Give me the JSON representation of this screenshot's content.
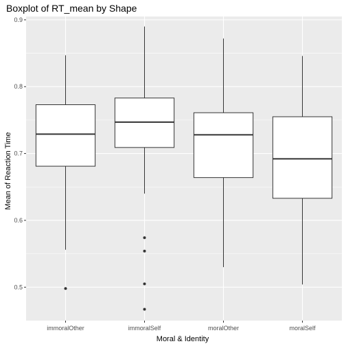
{
  "chart_data": {
    "type": "boxplot",
    "title": "Boxplot of RT_mean by Shape",
    "xlabel": "Moral & Identity",
    "ylabel": "Mean of Reaction Time",
    "ylim": [
      0.45,
      0.905
    ],
    "yticks": [
      "0.5",
      "0.6",
      "0.7",
      "0.8",
      "0.9"
    ],
    "grid": true,
    "panel_background": "#ebebeb",
    "grid_color": "#ffffff",
    "box_fill": "#ffffff",
    "line_color": "#333333",
    "categories": [
      "immoralOther",
      "immoralSelf",
      "moralOther",
      "moralSelf"
    ],
    "boxes": [
      {
        "name": "immoralOther",
        "whisker_low": 0.556,
        "q1": 0.681,
        "median": 0.729,
        "q3": 0.773,
        "whisker_high": 0.847,
        "outliers": [
          0.498
        ]
      },
      {
        "name": "immoralSelf",
        "whisker_low": 0.64,
        "q1": 0.709,
        "median": 0.747,
        "q3": 0.783,
        "whisker_high": 0.89,
        "outliers": [
          0.574,
          0.554,
          0.505,
          0.467
        ]
      },
      {
        "name": "moralOther",
        "whisker_low": 0.53,
        "q1": 0.664,
        "median": 0.728,
        "q3": 0.761,
        "whisker_high": 0.872,
        "outliers": []
      },
      {
        "name": "moralSelf",
        "whisker_low": 0.504,
        "q1": 0.633,
        "median": 0.692,
        "q3": 0.755,
        "whisker_high": 0.846,
        "outliers": []
      }
    ]
  }
}
